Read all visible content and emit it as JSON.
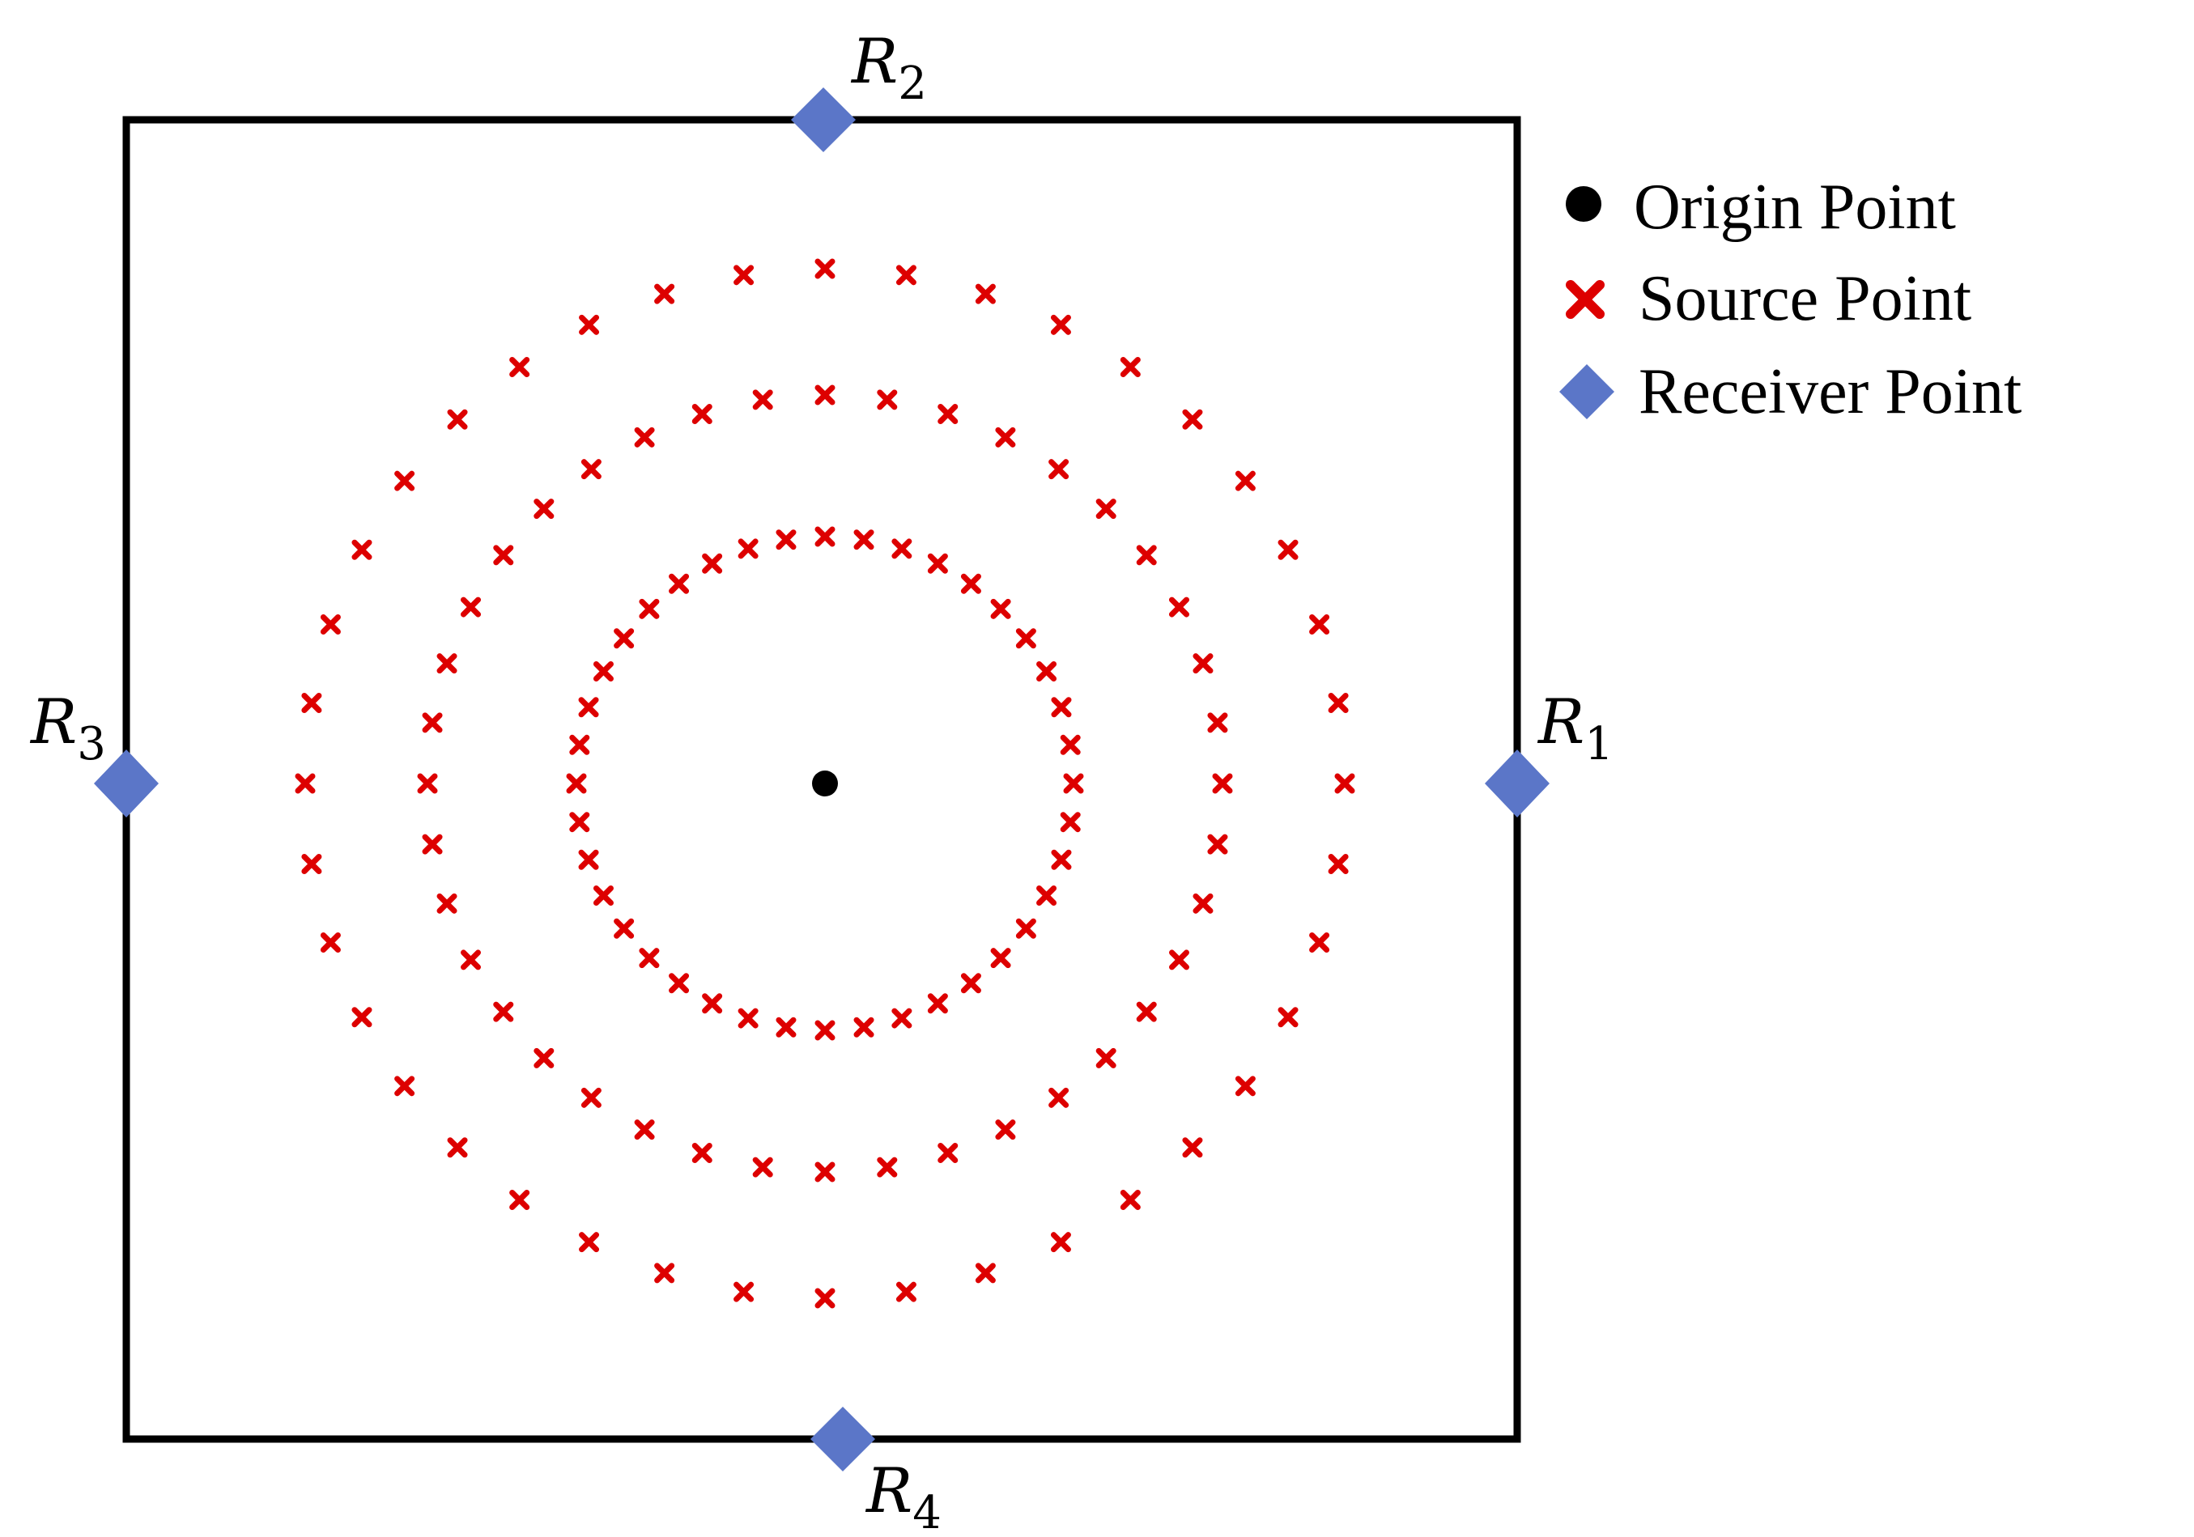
{
  "legend": {
    "origin_label": "Origin Point",
    "source_label": "Source Point",
    "receiver_label": "Receiver Point"
  },
  "colors": {
    "origin": "#000000",
    "source": "#dd0000",
    "receiver": "#5b76c8",
    "boundary": "#000000"
  },
  "receivers": [
    {
      "letter": "R",
      "index": "1"
    },
    {
      "letter": "R",
      "index": "2"
    },
    {
      "letter": "R",
      "index": "3"
    },
    {
      "letter": "R",
      "index": "4"
    }
  ],
  "source_rings": [
    {
      "count": 40
    },
    {
      "count": 40
    },
    {
      "count": 40
    }
  ]
}
